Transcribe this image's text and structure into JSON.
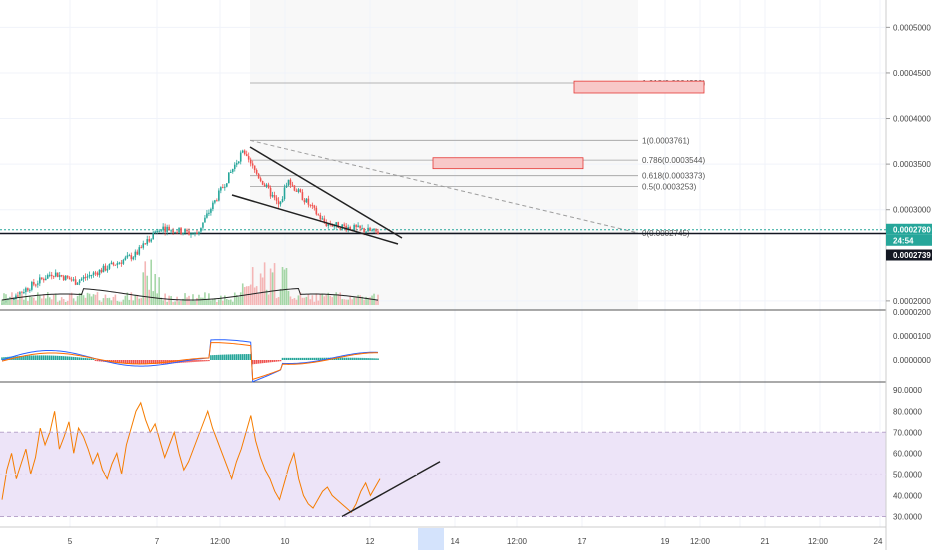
{
  "chart_data": [
    {
      "type": "candlestick",
      "panel": "price",
      "y_axis_ticks": [
        "0.0005000",
        "0.0004500",
        "0.0004000",
        "0.0003500",
        "0.0003000",
        "0.0002000"
      ],
      "ylim": [
        0.00019,
        0.00053
      ],
      "fib_levels": [
        {
          "label": "1.618(0.0004390)",
          "value": 0.000439
        },
        {
          "label": "1(0.0003761)",
          "value": 0.0003761
        },
        {
          "label": "0.786(0.0003544)",
          "value": 0.0003544
        },
        {
          "label": "0.618(0.0003373)",
          "value": 0.0003373
        },
        {
          "label": "0.5(0.0003253)",
          "value": 0.0003253
        },
        {
          "label": "0(0.0002745)",
          "value": 0.0002745
        }
      ],
      "target_zones": [
        {
          "low": 0.000428,
          "high": 0.000441
        },
        {
          "low": 0.000345,
          "high": 0.000357
        }
      ],
      "price_badges": [
        {
          "label": "0.0002780",
          "color": "#26a69a"
        },
        {
          "label": "24:54",
          "color": "#26a69a"
        },
        {
          "label": "0.0002739",
          "color": "#131722"
        }
      ],
      "horizontal_line": 0.0002739,
      "ma_line": "moving-average",
      "pattern": "falling-wedge"
    },
    {
      "type": "line",
      "panel": "macd",
      "y_axis_ticks": [
        "0.0000200",
        "0.0000100",
        "0.0000000"
      ],
      "series": [
        {
          "name": "",
          "color": "#2962ff"
        },
        {
          "name": "",
          "color": "#ff6d00"
        }
      ],
      "histogram_colors": {
        "up": "#26a69a",
        "down": "#ef5350"
      }
    },
    {
      "type": "line",
      "panel": "rsi",
      "y_axis_ticks": [
        "90.0000",
        "80.0000",
        "70.0000",
        "60.0000",
        "50.0000",
        "40.0000",
        "30.0000"
      ],
      "ylim": [
        25,
        92
      ],
      "band": [
        30,
        70
      ],
      "band_color": "#e9dcf7",
      "line_color": "#f57c00",
      "values": [
        38,
        52,
        60,
        48,
        55,
        62,
        50,
        58,
        72,
        64,
        70,
        80,
        62,
        68,
        75,
        60,
        72,
        68,
        62,
        55,
        60,
        52,
        48,
        55,
        60,
        50,
        64,
        72,
        80,
        84,
        76,
        70,
        74,
        66,
        58,
        64,
        70,
        60,
        52,
        56,
        62,
        68,
        74,
        80,
        72,
        66,
        60,
        54,
        48,
        56,
        62,
        70,
        78,
        66,
        58,
        52,
        48,
        42,
        38,
        46,
        54,
        60,
        48,
        40,
        36,
        34,
        38,
        42,
        44,
        40,
        38,
        36,
        34,
        32,
        36,
        42,
        46,
        40,
        44,
        48
      ],
      "trendline": "rising"
    }
  ],
  "x_axis_ticks": [
    "5",
    "7",
    "12:00",
    "10",
    "12",
    "14",
    "12:00",
    "17",
    "19",
    "12:00",
    "21",
    "12:00",
    "24"
  ]
}
